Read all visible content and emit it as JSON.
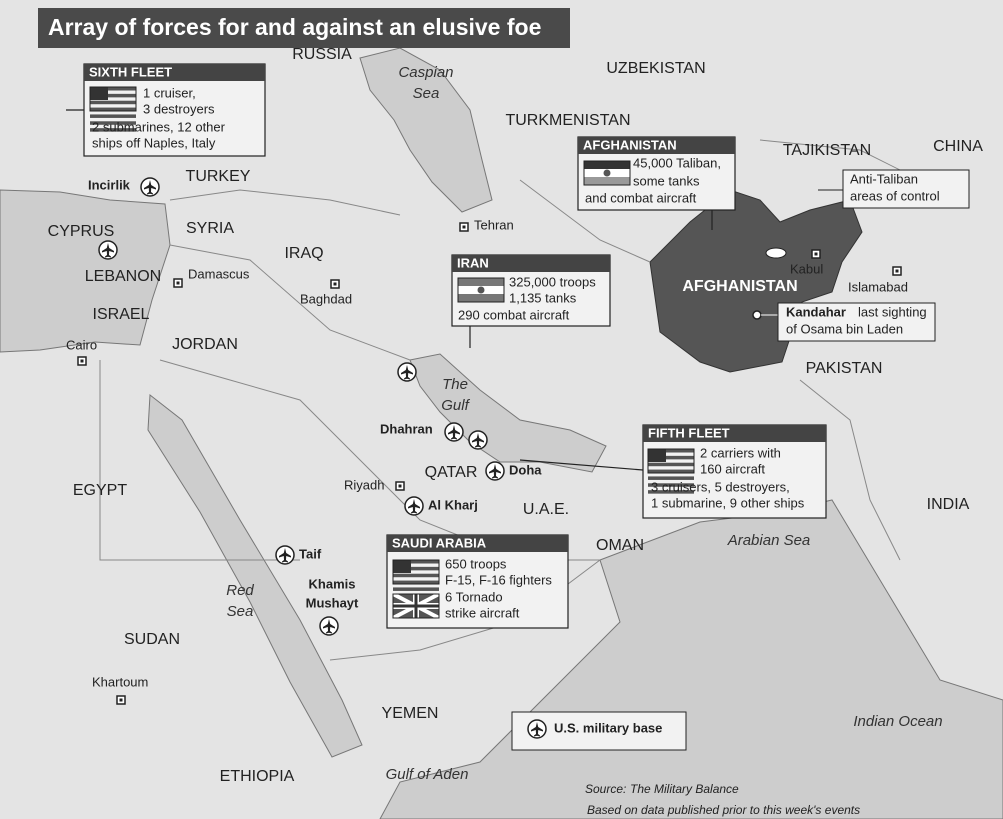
{
  "title": "Array of forces for and against an elusive foe",
  "countries": [
    "RUSSIA",
    "UZBEKISTAN",
    "TURKMENISTAN",
    "TAJIKISTAN",
    "CHINA",
    "TURKEY",
    "SYRIA",
    "IRAQ",
    "CYPRUS",
    "LEBANON",
    "ISRAEL",
    "JORDAN",
    "AFGHANISTAN",
    "PAKISTAN",
    "EGYPT",
    "QATAR",
    "U.A.E.",
    "OMAN",
    "INDIA",
    "SUDAN",
    "YEMEN",
    "ETHIOPIA"
  ],
  "water_bodies": [
    [
      "Caspian",
      "Sea"
    ],
    [
      "The",
      "Gulf"
    ],
    [
      "Arabian Sea"
    ],
    [
      "Red",
      "Sea"
    ],
    [
      "Indian Ocean"
    ],
    [
      "Gulf of Aden"
    ]
  ],
  "cities": [
    "Tehran",
    "Damascus",
    "Baghdad",
    "Cairo",
    "Kabul",
    "Islamabad",
    "Riyadh",
    "Khartoum"
  ],
  "bases": [
    [
      "Incirlik"
    ],
    [
      "Taif"
    ],
    [
      "Khamis",
      "Mushayt"
    ],
    [
      "Dhahran"
    ],
    [
      "Doha"
    ],
    [
      "Al Kharj"
    ]
  ],
  "boxes": [
    {
      "title": "SIXTH FLEET",
      "lines": [
        "1 cruiser,",
        "3 destroyers",
        "2 submarines, 12 other",
        "ships off Naples, Italy"
      ]
    },
    {
      "title": "AFGHANISTAN",
      "lines": [
        "45,000 Taliban,",
        "some tanks",
        "and combat aircraft"
      ]
    },
    {
      "title": "IRAN",
      "lines": [
        "325,000 troops",
        "1,135 tanks",
        "290 combat aircraft"
      ]
    },
    {
      "title": "FIFTH FLEET",
      "lines": [
        "2 carriers with",
        "160 aircraft",
        "3 cruisers, 5 destroyers,",
        "1 submarine, 9 other ships"
      ]
    },
    {
      "title": "SAUDI ARABIA",
      "lines": [
        "650 troops",
        "F-15, F-16 fighters",
        "6 Tornado",
        "strike aircraft"
      ]
    }
  ],
  "callouts": [
    {
      "lines": [
        "Anti-Taliban",
        "areas of control"
      ]
    },
    {
      "name": "Kandahar",
      "lines": [
        "last sighting",
        "of Osama bin Laden"
      ]
    }
  ],
  "legend": "U.S. military base",
  "source": {
    "label": "Source:",
    "text": "The Military Balance"
  },
  "note": "Based on data published prior to this week's events"
}
